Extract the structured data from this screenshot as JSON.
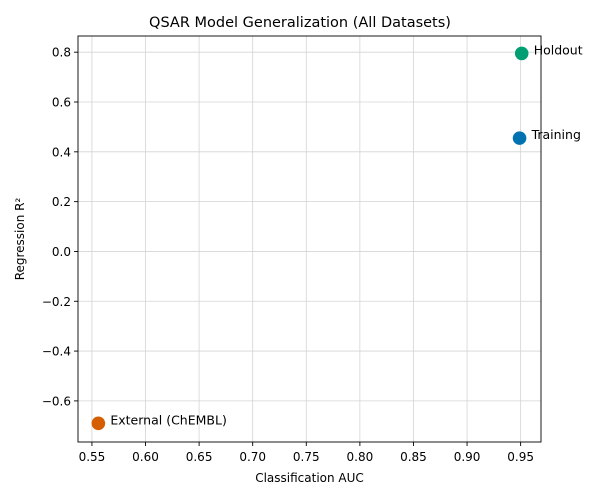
{
  "chart_data": {
    "type": "scatter",
    "title": "QSAR Model Generalization (All Datasets)",
    "xlabel": "Classification AUC",
    "ylabel": "Regression R²",
    "xlim": [
      0.537,
      0.969
    ],
    "ylim": [
      -0.765,
      0.865
    ],
    "xticks": [
      0.55,
      0.6,
      0.65,
      0.7,
      0.75,
      0.8,
      0.85,
      0.9,
      0.95
    ],
    "xtick_labels": [
      "0.55",
      "0.60",
      "0.65",
      "0.70",
      "0.75",
      "0.80",
      "0.85",
      "0.90",
      "0.95"
    ],
    "yticks": [
      -0.6,
      -0.4,
      -0.2,
      0.0,
      0.2,
      0.4,
      0.6,
      0.8
    ],
    "ytick_labels": [
      "−0.6",
      "−0.4",
      "−0.2",
      "0.0",
      "0.2",
      "0.4",
      "0.6",
      "0.8"
    ],
    "grid": true,
    "points": [
      {
        "label": "Training",
        "x": 0.949,
        "y": 0.455,
        "color": "#0072b2"
      },
      {
        "label": "Holdout",
        "x": 0.951,
        "y": 0.795,
        "color": "#009e73"
      },
      {
        "label": "External (ChEMBL)",
        "x": 0.556,
        "y": -0.69,
        "color": "#d55e00"
      }
    ]
  }
}
